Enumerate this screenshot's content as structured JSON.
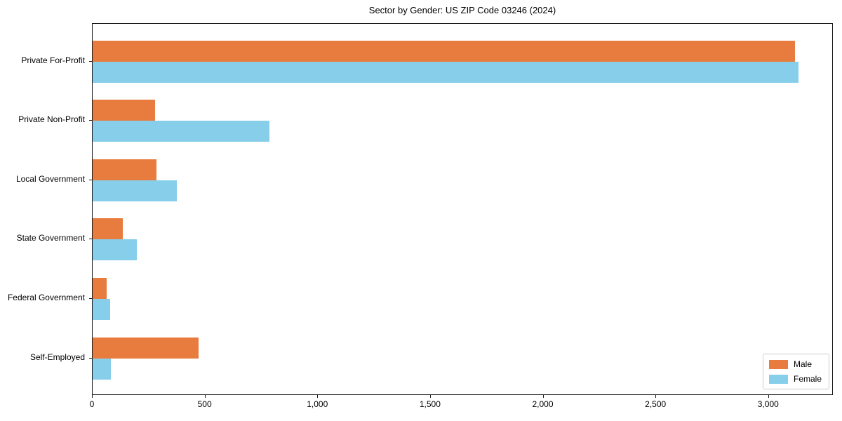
{
  "chart": {
    "title": "Sector by Gender: US ZIP Code 03246 (2024)"
  },
  "chart_data": {
    "type": "bar",
    "orientation": "horizontal",
    "title": "Sector by Gender: US ZIP Code 03246 (2024)",
    "categories": [
      "Private For-Profit",
      "Private Non-Profit",
      "Local Government",
      "State Government",
      "Federal Government",
      "Self-Employed"
    ],
    "series": [
      {
        "name": "Male",
        "color": "#e87c3e",
        "values": [
          3115,
          277,
          284,
          134,
          62,
          470
        ]
      },
      {
        "name": "Female",
        "color": "#87ceeb",
        "values": [
          3130,
          785,
          374,
          196,
          78,
          80
        ]
      }
    ],
    "xlabel": "",
    "ylabel": "",
    "xlim": [
      0,
      3287
    ],
    "x_ticks": [
      0,
      500,
      1000,
      1500,
      2000,
      2500,
      3000
    ],
    "x_tick_labels": [
      "0",
      "500",
      "1,000",
      "1,500",
      "2,000",
      "2,500",
      "3,000"
    ],
    "grid": false,
    "legend_position": "lower right"
  }
}
